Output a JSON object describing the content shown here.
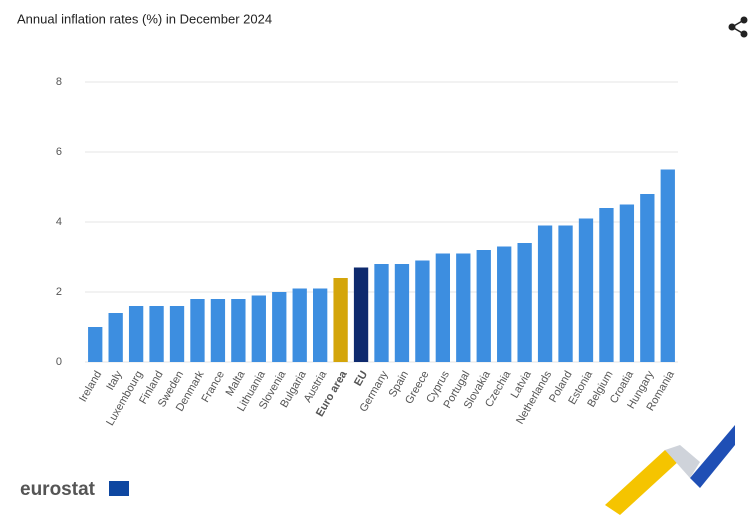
{
  "chart_data": {
    "type": "bar",
    "title": "Annual inflation rates (%) in December 2024",
    "categories": [
      "Ireland",
      "Italy",
      "Luxembourg",
      "Finland",
      "Sweden",
      "Denmark",
      "France",
      "Malta",
      "Lithuania",
      "Slovenia",
      "Bulgaria",
      "Austria",
      "Euro area",
      "EU",
      "Germany",
      "Spain",
      "Greece",
      "Cyprus",
      "Portugal",
      "Slovakia",
      "Czechia",
      "Latvia",
      "Netherlands",
      "Poland",
      "Estonia",
      "Belgium",
      "Croatia",
      "Hungary",
      "Romania"
    ],
    "values": [
      1.0,
      1.4,
      1.6,
      1.6,
      1.6,
      1.8,
      1.8,
      1.8,
      1.9,
      2.0,
      2.1,
      2.1,
      2.4,
      2.7,
      2.8,
      2.8,
      2.9,
      3.1,
      3.1,
      3.2,
      3.3,
      3.4,
      3.9,
      3.9,
      4.1,
      4.4,
      4.5,
      4.8,
      5.5
    ],
    "color": "#3d8ee0",
    "colors": [
      "#3d8ee0",
      "#3d8ee0",
      "#3d8ee0",
      "#3d8ee0",
      "#3d8ee0",
      "#3d8ee0",
      "#3d8ee0",
      "#3d8ee0",
      "#3d8ee0",
      "#3d8ee0",
      "#3d8ee0",
      "#3d8ee0",
      "#d4a50a",
      "#0e2a6e",
      "#3d8ee0",
      "#3d8ee0",
      "#3d8ee0",
      "#3d8ee0",
      "#3d8ee0",
      "#3d8ee0",
      "#3d8ee0",
      "#3d8ee0",
      "#3d8ee0",
      "#3d8ee0",
      "#3d8ee0",
      "#3d8ee0",
      "#3d8ee0",
      "#3d8ee0",
      "#3d8ee0"
    ],
    "ylim": [
      0,
      8
    ],
    "yticks": [
      0,
      2,
      4,
      6,
      8
    ],
    "grid": true
  },
  "logo": "eurostat"
}
